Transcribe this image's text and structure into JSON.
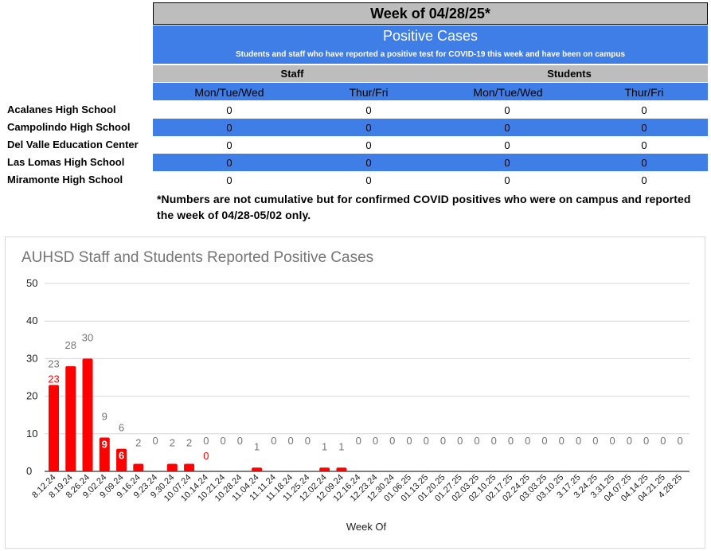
{
  "header": {
    "week_title": "Week of 04/28/25*",
    "section_title": "Positive Cases",
    "section_subtitle": "Students and staff who have reported a positive test for COVID-19 this week and have been on campus",
    "group_staff": "Staff",
    "group_students": "Students",
    "day_cols": [
      "Mon/Tue/Wed",
      "Thur/Fri",
      "Mon/Tue/Wed",
      "Thur/Fri"
    ]
  },
  "rows": [
    {
      "school": "Acalanes High School",
      "values": [
        "0",
        "0",
        "0",
        "0"
      ]
    },
    {
      "school": "Campolindo High School",
      "values": [
        "0",
        "0",
        "0",
        "0"
      ]
    },
    {
      "school": "Del Valle Education Center",
      "values": [
        "0",
        "0",
        "0",
        "0"
      ]
    },
    {
      "school": "Las Lomas High School",
      "values": [
        "0",
        "0",
        "0",
        "0"
      ]
    },
    {
      "school": "Miramonte High School",
      "values": [
        "0",
        "0",
        "0",
        "0"
      ]
    }
  ],
  "note": "*Numbers are not cumulative but for confirmed COVID positives who were on campus and reported the week of 04/28-05/02 only.",
  "chart_data": {
    "type": "bar",
    "title": "AUHSD Staff and Students Reported Positive Cases",
    "xlabel": "Week Of",
    "ylabel": "",
    "ylim": [
      0,
      50
    ],
    "yticks": [
      0,
      10,
      20,
      30,
      40,
      50
    ],
    "grid": true,
    "colors": {
      "bar": "#ff0000",
      "total_label": "#757575",
      "inner_label": "#ffffff",
      "red_label": "#ff0000"
    },
    "categories": [
      "8.12.24",
      "8.19.24",
      "8.26.24",
      "9.02.24",
      "9.09.24",
      "9.16.24",
      "9.23.24",
      "9.30.24",
      "10.07.24",
      "10.14.24",
      "10.21.24",
      "10.28.24",
      "11.04.24",
      "11.11.24",
      "11.18.24",
      "11.25.24",
      "12.02.24",
      "12.09.24",
      "12.16.24",
      "12.23.24",
      "12.30.24",
      "01.06.25",
      "01.13.25",
      "01.20.25",
      "01.27.25",
      "02.03.25",
      "02.10.25",
      "02.17.25",
      "02.24.25",
      "03.03.25",
      "03.10.25",
      "3.17.25",
      "3.24.25",
      "3.31.25",
      "04.07.25",
      "04.14.25",
      "04.21.25",
      "4.28.25"
    ],
    "values": [
      23,
      28,
      30,
      9,
      6,
      2,
      0,
      2,
      2,
      0,
      0,
      0,
      1,
      0,
      0,
      0,
      1,
      1,
      0,
      0,
      0,
      0,
      0,
      0,
      0,
      0,
      0,
      0,
      0,
      0,
      0,
      0,
      0,
      0,
      0,
      0,
      0,
      0
    ],
    "total_labels": [
      "23",
      "28",
      "30",
      "9",
      "6",
      "2",
      "0",
      "2",
      "2",
      "0",
      "0",
      "0",
      "1",
      "0",
      "0",
      "0",
      "1",
      "1",
      "0",
      "0",
      "0",
      "0",
      "0",
      "0",
      "0",
      "0",
      "0",
      "0",
      "0",
      "0",
      "0",
      "0",
      "0",
      "0",
      "0",
      "0",
      "0",
      "0"
    ],
    "bar_labels": [
      {
        "index": 0,
        "text": "23",
        "style": "red"
      },
      {
        "index": 3,
        "text": "9",
        "style": "inner"
      },
      {
        "index": 4,
        "text": "6",
        "style": "inner"
      },
      {
        "index": 9,
        "text": "0",
        "style": "red"
      }
    ]
  }
}
